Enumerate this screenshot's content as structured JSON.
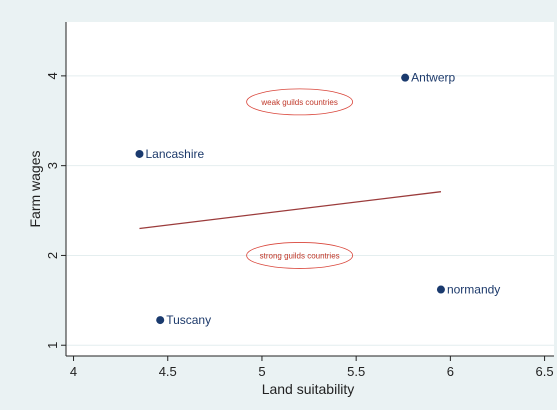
{
  "chart_data": {
    "type": "scatter",
    "title": "",
    "xlabel": "Land suitability",
    "ylabel": "Farm wages",
    "xlim": [
      3.96,
      6.55
    ],
    "ylim": [
      0.88,
      4.6
    ],
    "x_ticks": [
      4,
      4.5,
      5,
      5.5,
      6,
      6.5
    ],
    "x_tick_labels": [
      "4",
      "4.5",
      "5",
      "5.5",
      "6",
      "6.5"
    ],
    "y_ticks": [
      1,
      2,
      3,
      4
    ],
    "y_tick_labels": [
      "1",
      "2",
      "3",
      "4"
    ],
    "grid": "horizontal",
    "points": [
      {
        "label": "Antwerp",
        "x": 5.76,
        "y": 3.98
      },
      {
        "label": "Lancashire",
        "x": 4.35,
        "y": 3.13
      },
      {
        "label": "normandy",
        "x": 5.95,
        "y": 1.62
      },
      {
        "label": "Tuscany",
        "x": 4.46,
        "y": 1.28
      }
    ],
    "fit_line": {
      "x": [
        4.35,
        5.95
      ],
      "y": [
        2.3,
        2.71
      ]
    },
    "annotations": [
      {
        "text": "weak guilds countries",
        "x": 5.2,
        "y": 3.71
      },
      {
        "text": "strong guilds countries",
        "x": 5.2,
        "y": 2.0
      }
    ],
    "colors": {
      "outer_background": "#eaf2f3",
      "plot_background": "#ffffff",
      "grid": "#e4eeef",
      "marker": "#1a3a6e",
      "fit_line": "#9b3b3b",
      "annotation": "#d9453a"
    }
  }
}
